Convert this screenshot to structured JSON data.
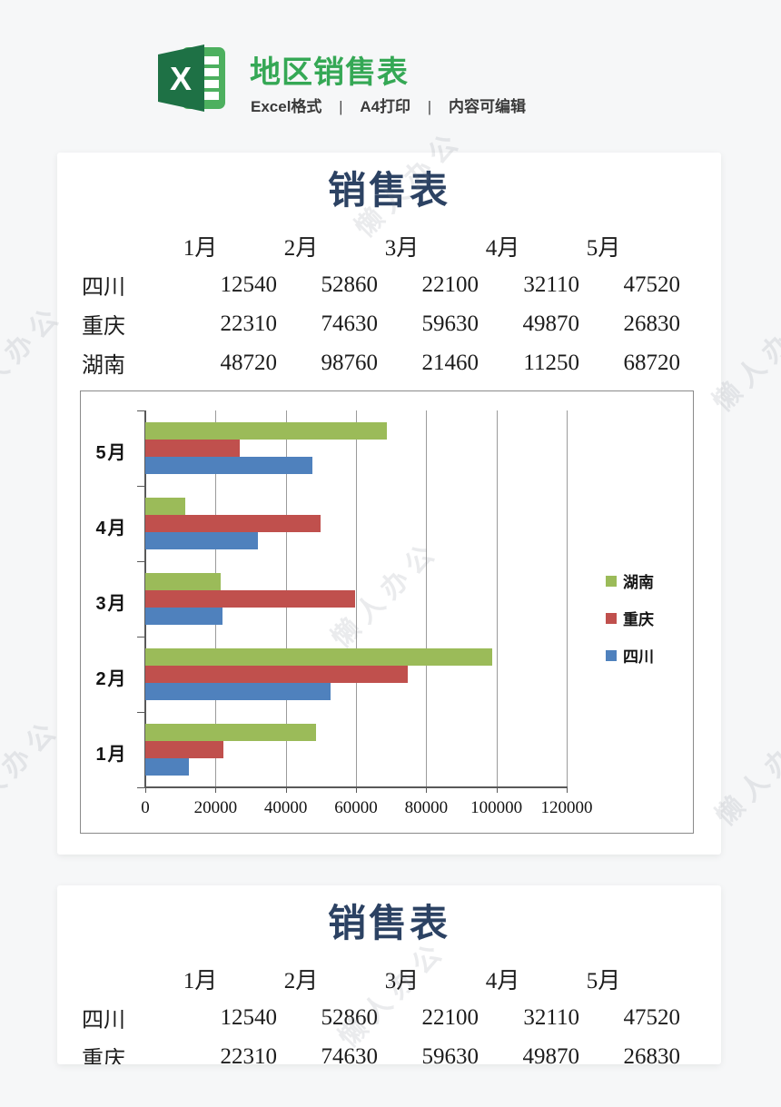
{
  "header": {
    "icon_name": "excel-icon",
    "title": "地区销售表",
    "subtitle": {
      "format": "Excel格式",
      "separator": "|",
      "print": "A4打印",
      "editable": "内容可编辑"
    }
  },
  "watermark": {
    "text": "懒人办公"
  },
  "sheet": {
    "title": "销售表",
    "columns": [
      "1月",
      "2月",
      "3月",
      "4月",
      "5月"
    ],
    "rows": [
      {
        "region": "四川",
        "values": [
          12540,
          52860,
          22100,
          32110,
          47520
        ]
      },
      {
        "region": "重庆",
        "values": [
          22310,
          74630,
          59630,
          49870,
          26830
        ]
      },
      {
        "region": "湖南",
        "values": [
          48720,
          98760,
          21460,
          11250,
          68720
        ]
      }
    ]
  },
  "chart_data": {
    "type": "bar",
    "orientation": "horizontal",
    "title": "",
    "categories": [
      "1月",
      "2月",
      "3月",
      "4月",
      "5月"
    ],
    "category_display_order": "bottom-to-top",
    "series": [
      {
        "name": "湖南",
        "color": "#9bbb59",
        "values": [
          48720,
          98760,
          21460,
          11250,
          68720
        ]
      },
      {
        "name": "重庆",
        "color": "#c0504d",
        "values": [
          22310,
          74630,
          59630,
          49870,
          26830
        ]
      },
      {
        "name": "四川",
        "color": "#4f81bd",
        "values": [
          12540,
          52860,
          22100,
          32110,
          47520
        ]
      }
    ],
    "xlim": [
      0,
      120000
    ],
    "x_ticks": [
      0,
      20000,
      40000,
      60000,
      80000,
      100000,
      120000
    ],
    "grid": true,
    "legend": {
      "labels": [
        "湖南",
        "重庆",
        "四川"
      ],
      "position": "right-inside"
    }
  },
  "colors": {
    "accent_green": "#35a855",
    "sheet_title_navy": "#2c4263",
    "bar_green": "#9bbb59",
    "bar_red": "#c0504d",
    "bar_blue": "#4f81bd"
  }
}
